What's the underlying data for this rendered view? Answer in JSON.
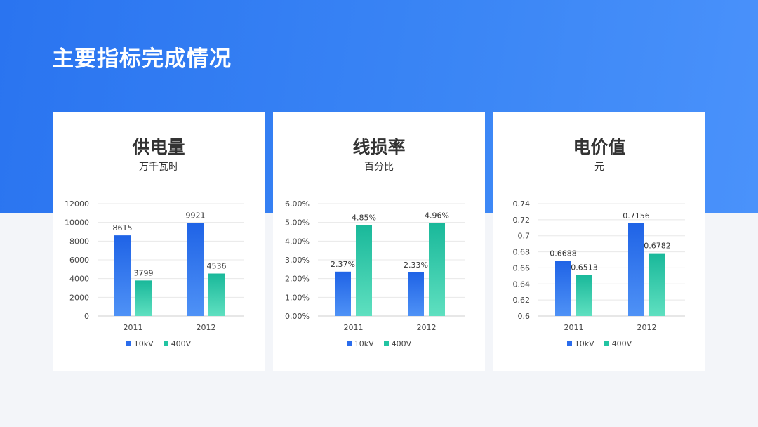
{
  "page": {
    "title": "主要指标完成情况"
  },
  "colors": {
    "series_10kv": [
      "#1f63e6",
      "#4f92f6"
    ],
    "series_400v": [
      "#19b89a",
      "#5fe0c0"
    ]
  },
  "cards": [
    {
      "title": "供电量",
      "unit": "万千瓦时",
      "legend": [
        "10kV",
        "400V"
      ]
    },
    {
      "title": "线损率",
      "unit": "百分比",
      "legend": [
        "10kV",
        "400V"
      ]
    },
    {
      "title": "电价值",
      "unit": "元",
      "legend": [
        "10kV",
        "400V"
      ]
    }
  ],
  "chart_data": [
    {
      "type": "bar",
      "title": "供电量",
      "subtitle": "万千瓦时",
      "categories": [
        "2011",
        "2012"
      ],
      "series": [
        {
          "name": "10kV",
          "values": [
            8615,
            9921
          ],
          "labels": [
            "8615",
            "9921"
          ]
        },
        {
          "name": "400V",
          "values": [
            3799,
            4536
          ],
          "labels": [
            "3799",
            "4536"
          ]
        }
      ],
      "ylim": [
        0,
        12000
      ],
      "yticks": [
        0,
        2000,
        4000,
        6000,
        8000,
        10000,
        12000
      ],
      "ytick_labels": [
        "0",
        "2000",
        "4000",
        "6000",
        "8000",
        "10000",
        "12000"
      ],
      "grid": true,
      "legend_position": "bottom"
    },
    {
      "type": "bar",
      "title": "线损率",
      "subtitle": "百分比",
      "categories": [
        "2011",
        "2012"
      ],
      "series": [
        {
          "name": "10kV",
          "values": [
            2.37,
            2.33
          ],
          "labels": [
            "2.37%",
            "2.33%"
          ]
        },
        {
          "name": "400V",
          "values": [
            4.85,
            4.96
          ],
          "labels": [
            "4.85%",
            "4.96%"
          ]
        }
      ],
      "ylim": [
        0,
        6
      ],
      "yticks": [
        0,
        1,
        2,
        3,
        4,
        5,
        6
      ],
      "ytick_labels": [
        "0.00%",
        "1.00%",
        "2.00%",
        "3.00%",
        "4.00%",
        "5.00%",
        "6.00%"
      ],
      "grid": true,
      "legend_position": "bottom"
    },
    {
      "type": "bar",
      "title": "电价值",
      "subtitle": "元",
      "categories": [
        "2011",
        "2012"
      ],
      "series": [
        {
          "name": "10kV",
          "values": [
            0.6688,
            0.7156
          ],
          "labels": [
            "0.6688",
            "0.7156"
          ]
        },
        {
          "name": "400V",
          "values": [
            0.6513,
            0.6782
          ],
          "labels": [
            "0.6513",
            "0.6782"
          ]
        }
      ],
      "ylim": [
        0.6,
        0.74
      ],
      "yticks": [
        0.6,
        0.62,
        0.64,
        0.66,
        0.68,
        0.7,
        0.72,
        0.74
      ],
      "ytick_labels": [
        "0.6",
        "0.62",
        "0.64",
        "0.66",
        "0.68",
        "0.7",
        "0.72",
        "0.74"
      ],
      "grid": true,
      "legend_position": "bottom"
    }
  ]
}
